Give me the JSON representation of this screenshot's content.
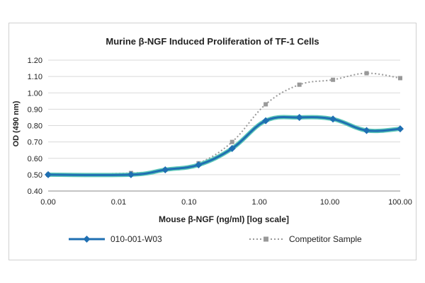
{
  "chart_data": {
    "type": "line",
    "title": "Murine β-NGF Induced Proliferation of TF-1 Cells",
    "xlabel": "Mouse β-NGF (ng/ml) [log scale]",
    "ylabel": "OD (490 nm)",
    "x_scale": "log",
    "x_ticks": [
      "0.00",
      "0.01",
      "0.10",
      "1.00",
      "10.00",
      "100.00"
    ],
    "y_ticks": [
      "0.40",
      "0.50",
      "0.60",
      "0.70",
      "0.80",
      "0.90",
      "1.00",
      "1.10",
      "1.20"
    ],
    "ylim": [
      0.4,
      1.2
    ],
    "grid": "horizontal",
    "legend_position": "bottom",
    "series": [
      {
        "name": "010-001-W03",
        "color": "#1f6fb2",
        "style": "solid",
        "marker": "diamond",
        "x": [
          0.001,
          0.015,
          0.046,
          0.137,
          0.41,
          1.23,
          3.7,
          11.1,
          33.3,
          100
        ],
        "values": [
          0.5,
          0.5,
          0.53,
          0.56,
          0.66,
          0.83,
          0.85,
          0.84,
          0.77,
          0.78
        ]
      },
      {
        "name": "Competitor Sample",
        "color": "#999999",
        "style": "dotted",
        "marker": "square",
        "x": [
          0.001,
          0.015,
          0.046,
          0.137,
          0.41,
          1.23,
          3.7,
          11.1,
          33.3,
          100
        ],
        "values": [
          0.5,
          0.51,
          0.53,
          0.57,
          0.7,
          0.93,
          1.05,
          1.08,
          1.12,
          1.09
        ]
      }
    ]
  }
}
